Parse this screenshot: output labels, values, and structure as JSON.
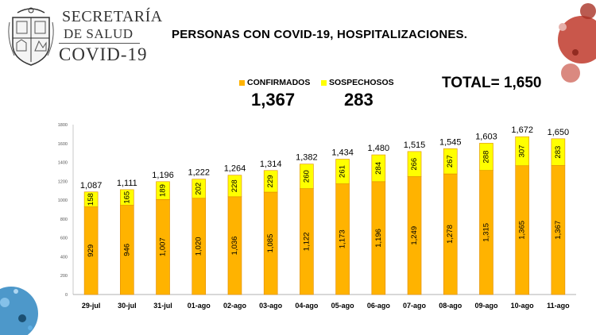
{
  "header": {
    "org_line1": "SECRETARÍA",
    "org_line2": "DE SALUD",
    "org_line3": "COVID-19",
    "title": "PERSONAS CON COVID-19, HOSPITALIZACIONES."
  },
  "summary": {
    "confirmados_label": "CONFIRMADOS",
    "confirmados_value": "1,367",
    "sospechosos_label": "SOSPECHOSOS",
    "sospechosos_value": "283",
    "total_text": "TOTAL= 1,650"
  },
  "colors": {
    "confirmados": "#FFB300",
    "sospechosos": "#FFFF00",
    "bar_stroke": "#E08A00"
  },
  "chart_data": {
    "type": "bar",
    "stacked": true,
    "categories": [
      "29-jul",
      "30-jul",
      "31-jul",
      "01-ago",
      "02-ago",
      "03-ago",
      "04-ago",
      "05-ago",
      "06-ago",
      "07-ago",
      "08-ago",
      "09-ago",
      "10-ago",
      "11-ago"
    ],
    "series": [
      {
        "name": "CONFIRMADOS",
        "values": [
          929,
          946,
          1007,
          1020,
          1036,
          1085,
          1122,
          1173,
          1196,
          1249,
          1278,
          1315,
          1365,
          1367
        ]
      },
      {
        "name": "SOSPECHOSOS",
        "values": [
          158,
          165,
          189,
          202,
          228,
          229,
          260,
          261,
          284,
          266,
          267,
          288,
          307,
          283
        ]
      }
    ],
    "totals": [
      1087,
      1111,
      1196,
      1222,
      1264,
      1314,
      1382,
      1434,
      1480,
      1515,
      1545,
      1603,
      1672,
      1650
    ],
    "yticks": [
      0,
      200,
      400,
      600,
      800,
      1000,
      1200,
      1400,
      1600,
      1800
    ],
    "ylim": [
      0,
      1800
    ],
    "grid": false,
    "title": "",
    "xlabel": "",
    "ylabel": ""
  }
}
